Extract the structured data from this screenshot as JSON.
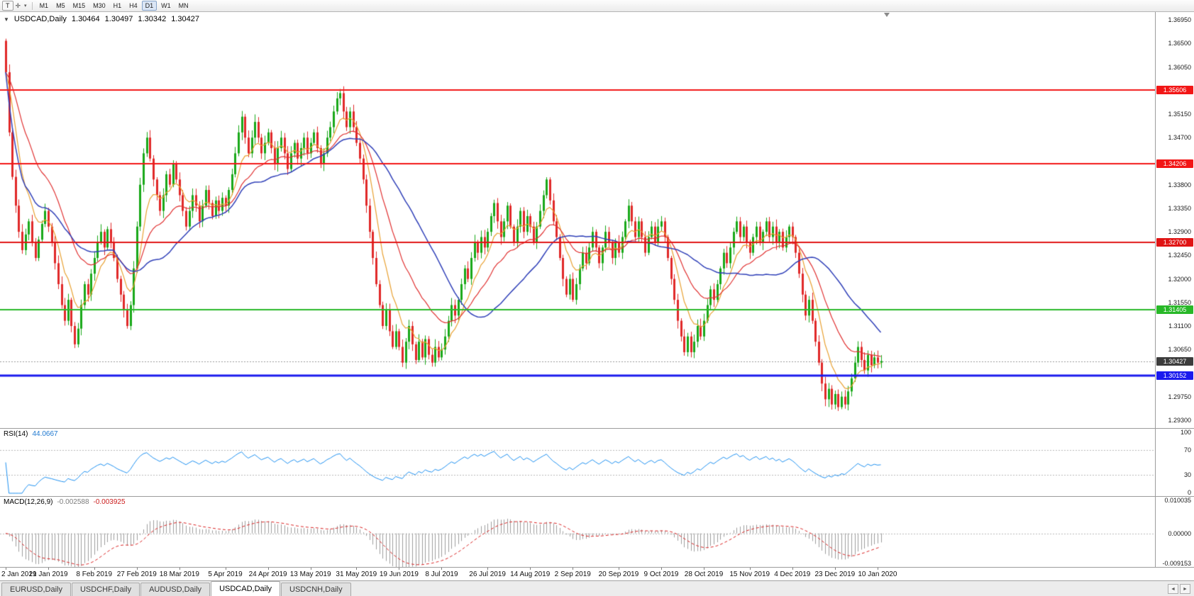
{
  "icons": {
    "text_tool": "T",
    "crosshair_tool": "✛",
    "dropdown_arrow": "▾",
    "collapse_triangle": "▼",
    "tab_scroll_left": "◄",
    "tab_scroll_right": "►"
  },
  "toolbar": {
    "timeframes": [
      "M1",
      "M5",
      "M15",
      "M30",
      "H1",
      "H4",
      "D1",
      "W1",
      "MN"
    ],
    "active_timeframe": "D1"
  },
  "header": {
    "symbol": "USDCAD,Daily",
    "open": "1.30464",
    "high": "1.30497",
    "low": "1.30342",
    "close": "1.30427"
  },
  "price_axis": {
    "labels": [
      "1.36950",
      "1.36500",
      "1.36050",
      "1.35600",
      "1.35150",
      "1.34700",
      "1.34250",
      "1.33800",
      "1.33350",
      "1.32900",
      "1.32450",
      "1.32000",
      "1.31550",
      "1.31100",
      "1.30650",
      "1.30200",
      "1.29750",
      "1.29300"
    ],
    "badges": [
      {
        "text": "1.35606",
        "value": 1.35606,
        "color": "#f21616"
      },
      {
        "text": "1.34206",
        "value": 1.34206,
        "color": "#f21616"
      },
      {
        "text": "1.32700",
        "value": 1.327,
        "color": "#e01414"
      },
      {
        "text": "1.31405",
        "value": 1.31405,
        "color": "#28b828"
      },
      {
        "text": "1.30427",
        "value": 1.30427,
        "color": "#3c3c3c"
      },
      {
        "text": "1.30152",
        "value": 1.30152,
        "color": "#1a1aee"
      }
    ]
  },
  "rsi_panel": {
    "name": "RSI(14)",
    "value": "44.0667",
    "axis_labels": [
      {
        "text": "100",
        "value": 100
      },
      {
        "text": "70",
        "value": 70
      },
      {
        "text": "30",
        "value": 30
      },
      {
        "text": "0",
        "value": 0
      }
    ],
    "levels": [
      70,
      30
    ],
    "line_color": "#1e90f0"
  },
  "macd_panel": {
    "name": "MACD(12,26,9)",
    "value_macd": "-0.002588",
    "value_signal": "-0.003925",
    "axis_labels": [
      {
        "text": "0.010035",
        "value": 0.010035
      },
      {
        "text": "0.00000",
        "value": 0
      },
      {
        "text": "-0.009153",
        "value": -0.009153
      }
    ],
    "scale_max": 0.010035,
    "scale_min": -0.009153,
    "histogram_color": "#9d9d9d",
    "signal_color": "#d92020"
  },
  "date_axis": {
    "labels": [
      {
        "text": "2 Jan 2019",
        "bar": 0
      },
      {
        "text": "21 Jan 2019",
        "bar": 13
      },
      {
        "text": "8 Feb 2019",
        "bar": 27
      },
      {
        "text": "27 Feb 2019",
        "bar": 40
      },
      {
        "text": "18 Mar 2019",
        "bar": 53
      },
      {
        "text": "5 Apr 2019",
        "bar": 67
      },
      {
        "text": "24 Apr 2019",
        "bar": 80
      },
      {
        "text": "13 May 2019",
        "bar": 93
      },
      {
        "text": "31 May 2019",
        "bar": 107
      },
      {
        "text": "19 Jun 2019",
        "bar": 120
      },
      {
        "text": "8 Jul 2019",
        "bar": 133
      },
      {
        "text": "26 Jul 2019",
        "bar": 147
      },
      {
        "text": "14 Aug 2019",
        "bar": 160
      },
      {
        "text": "2 Sep 2019",
        "bar": 173
      },
      {
        "text": "20 Sep 2019",
        "bar": 187
      },
      {
        "text": "9 Oct 2019",
        "bar": 200
      },
      {
        "text": "28 Oct 2019",
        "bar": 213
      },
      {
        "text": "15 Nov 2019",
        "bar": 227
      },
      {
        "text": "4 Dec 2019",
        "bar": 240
      },
      {
        "text": "23 Dec 2019",
        "bar": 253
      },
      {
        "text": "10 Jan 2020",
        "bar": 266
      }
    ]
  },
  "tabs": {
    "items": [
      {
        "label": "EURUSD,Daily",
        "active": false
      },
      {
        "label": "USDCHF,Daily",
        "active": false
      },
      {
        "label": "AUDUSD,Daily",
        "active": false
      },
      {
        "label": "USDCAD,Daily",
        "active": true
      },
      {
        "label": "USDCNH,Daily",
        "active": false
      }
    ]
  },
  "chart_data": {
    "type": "candlestick",
    "symbol": "USDCAD",
    "timeframe": "Daily",
    "current_bar_ohlc": {
      "open": 1.30464,
      "high": 1.30497,
      "low": 1.30342,
      "close": 1.30427
    },
    "price_scale": {
      "max": 1.371,
      "min": 1.2915
    },
    "first_open": 1.3655,
    "closes": [
      1.3595,
      1.348,
      1.3395,
      1.334,
      1.329,
      1.3255,
      1.3285,
      1.331,
      1.327,
      1.324,
      1.3275,
      1.3305,
      1.333,
      1.33,
      1.327,
      1.323,
      1.319,
      1.315,
      1.312,
      1.316,
      1.311,
      1.3075,
      1.3105,
      1.315,
      1.319,
      1.317,
      1.321,
      1.324,
      1.327,
      1.329,
      1.326,
      1.3295,
      1.327,
      1.324,
      1.32,
      1.317,
      1.314,
      1.311,
      1.315,
      1.322,
      1.33,
      1.338,
      1.344,
      1.347,
      1.343,
      1.339,
      1.336,
      1.333,
      1.336,
      1.34,
      1.338,
      1.342,
      1.339,
      1.336,
      1.333,
      1.33,
      1.333,
      1.336,
      1.334,
      1.331,
      1.334,
      1.337,
      1.3345,
      1.332,
      1.335,
      1.333,
      1.3355,
      1.334,
      1.337,
      1.34,
      1.344,
      1.348,
      1.351,
      1.347,
      1.344,
      1.347,
      1.35,
      1.347,
      1.344,
      1.346,
      1.348,
      1.345,
      1.342,
      1.345,
      1.347,
      1.344,
      1.341,
      1.344,
      1.346,
      1.343,
      1.345,
      1.347,
      1.344,
      1.346,
      1.348,
      1.345,
      1.342,
      1.344,
      1.347,
      1.349,
      1.352,
      1.3545,
      1.3555,
      1.352,
      1.349,
      1.352,
      1.349,
      1.346,
      1.343,
      1.339,
      1.334,
      1.329,
      1.324,
      1.319,
      1.315,
      1.311,
      1.314,
      1.31,
      1.307,
      1.31,
      1.307,
      1.304,
      1.308,
      1.311,
      1.3075,
      1.3045,
      1.308,
      1.305,
      1.3085,
      1.3055,
      1.304,
      1.307,
      1.305,
      1.3065,
      1.309,
      1.312,
      1.315,
      1.313,
      1.316,
      1.319,
      1.322,
      1.32,
      1.324,
      1.327,
      1.325,
      1.328,
      1.326,
      1.329,
      1.332,
      1.3345,
      1.331,
      1.328,
      1.331,
      1.334,
      1.33,
      1.327,
      1.33,
      1.333,
      1.329,
      1.332,
      1.33,
      1.327,
      1.33,
      1.333,
      1.336,
      1.339,
      1.335,
      1.331,
      1.328,
      1.324,
      1.32,
      1.317,
      1.32,
      1.316,
      1.319,
      1.322,
      1.325,
      1.323,
      1.326,
      1.329,
      1.326,
      1.323,
      1.326,
      1.329,
      1.327,
      1.324,
      1.327,
      1.325,
      1.328,
      1.331,
      1.334,
      1.331,
      1.328,
      1.331,
      1.328,
      1.325,
      1.328,
      1.33,
      1.327,
      1.33,
      1.331,
      1.328,
      1.324,
      1.32,
      1.316,
      1.312,
      1.309,
      1.306,
      1.309,
      1.306,
      1.308,
      1.311,
      1.309,
      1.312,
      1.315,
      1.318,
      1.316,
      1.319,
      1.322,
      1.325,
      1.323,
      1.326,
      1.329,
      1.331,
      1.328,
      1.33,
      1.327,
      1.325,
      1.328,
      1.33,
      1.327,
      1.329,
      1.331,
      1.328,
      1.33,
      1.327,
      1.329,
      1.326,
      1.328,
      1.33,
      1.328,
      1.325,
      1.321,
      1.317,
      1.313,
      1.316,
      1.312,
      1.308,
      1.304,
      1.3,
      1.297,
      1.299,
      1.296,
      1.298,
      1.2955,
      1.2975,
      1.296,
      1.2985,
      1.301,
      1.304,
      1.307,
      1.3045,
      1.3025,
      1.3055,
      1.3035,
      1.305,
      1.304,
      1.3043
    ],
    "horizontal_lines": [
      {
        "price": 1.35606,
        "color": "#f21616",
        "width": 2
      },
      {
        "price": 1.34206,
        "color": "#f21616",
        "width": 2
      },
      {
        "price": 1.327,
        "color": "#e01414",
        "width": 2
      },
      {
        "price": 1.31405,
        "color": "#28b828",
        "width": 2
      },
      {
        "price": 1.30152,
        "color": "#1a1aee",
        "width": 3
      }
    ],
    "current_price_line": {
      "price": 1.30427,
      "color": "#9a9a9a"
    },
    "moving_averages": [
      {
        "period": 8,
        "type": "ema",
        "color": "#e8a030",
        "width": 1.2
      },
      {
        "period": 21,
        "type": "ema",
        "color": "#e03030",
        "width": 1.2
      },
      {
        "period": 34,
        "type": "sma",
        "color": "#3040b8",
        "width": 1.5
      }
    ],
    "candle_up_color": "#18a818",
    "candle_down_color": "#e02828",
    "rsi": {
      "period": 14,
      "current": 44.0667
    },
    "macd": {
      "fast": 12,
      "slow": 26,
      "signal": 9,
      "current_macd": -0.002588,
      "current_signal": -0.003925
    }
  }
}
